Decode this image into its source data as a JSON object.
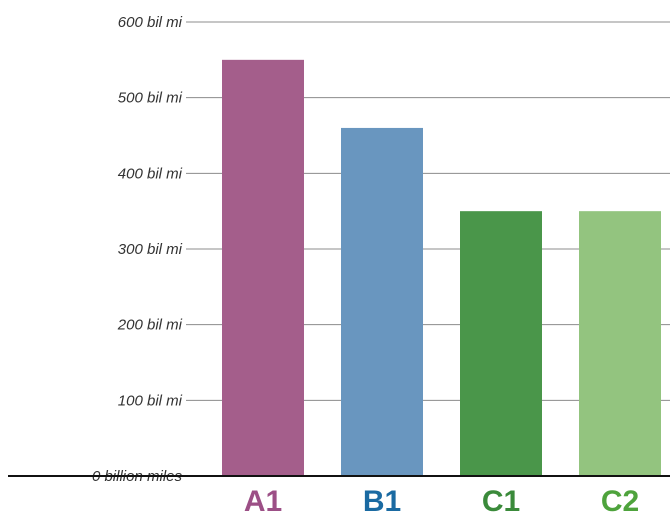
{
  "chart_data": {
    "type": "bar",
    "categories": [
      "A1",
      "B1",
      "C1",
      "C2"
    ],
    "values": [
      550,
      460,
      350,
      350
    ],
    "bar_colors": [
      "#a45e8b",
      "#6996bf",
      "#4a964a",
      "#93c47f"
    ],
    "label_colors": [
      "#9c4f86",
      "#1a6aa2",
      "#3a8a3a",
      "#4ea33c"
    ],
    "ylim": [
      0,
      600
    ],
    "y_ticks": [
      {
        "value": 0,
        "label": "0  billion miles"
      },
      {
        "value": 100,
        "label": "100 bil mi"
      },
      {
        "value": 200,
        "label": "200 bil mi"
      },
      {
        "value": 300,
        "label": "300 bil mi"
      },
      {
        "value": 400,
        "label": "400 bil mi"
      },
      {
        "value": 500,
        "label": "500 bil mi"
      },
      {
        "value": 600,
        "label": "600 bil mi"
      }
    ],
    "grid": true,
    "legend": "none"
  }
}
